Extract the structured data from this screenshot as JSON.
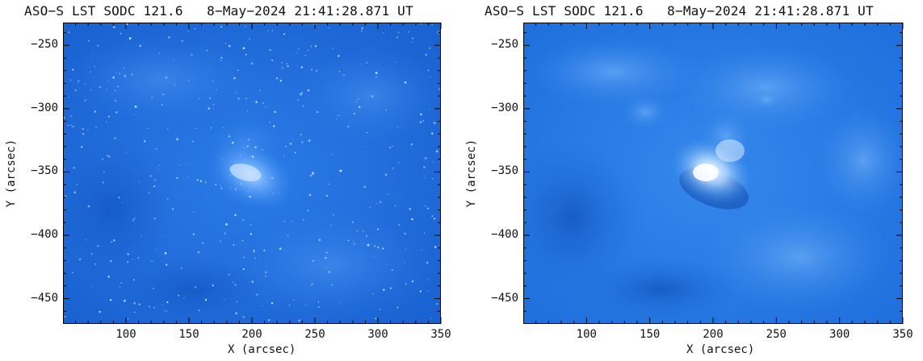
{
  "panels": [
    {
      "id": "left",
      "title": "ASO−S LST SODC 121.6   8−May−2024 21:41:28.871 UT",
      "xlabel": "X (arcsec)",
      "ylabel": "Y (arcsec)",
      "xticks": [
        "100",
        "150",
        "200",
        "250",
        "300",
        "350"
      ],
      "yticks": [
        "−250",
        "−300",
        "−350",
        "−400",
        "−450"
      ],
      "style": "raw-speckled"
    },
    {
      "id": "right",
      "title": "ASO−S LST SODC 121.6   8−May−2024 21:41:28.871 UT",
      "xlabel": "X (arcsec)",
      "ylabel": "Y (arcsec)",
      "xticks": [
        "100",
        "150",
        "200",
        "250",
        "300",
        "350"
      ],
      "yticks": [
        "−250",
        "−300",
        "−350",
        "−400",
        "−450"
      ],
      "style": "smoothed"
    }
  ],
  "axes": {
    "x_range": [
      50,
      350
    ],
    "y_range": [
      -470,
      -232
    ],
    "x_tick_values": [
      100,
      150,
      200,
      250,
      300,
      350
    ],
    "y_tick_values": [
      -250,
      -300,
      -350,
      -400,
      -450
    ]
  },
  "colors": {
    "image_base": "#1f6fe0",
    "image_bright": "#eaf4ff"
  }
}
